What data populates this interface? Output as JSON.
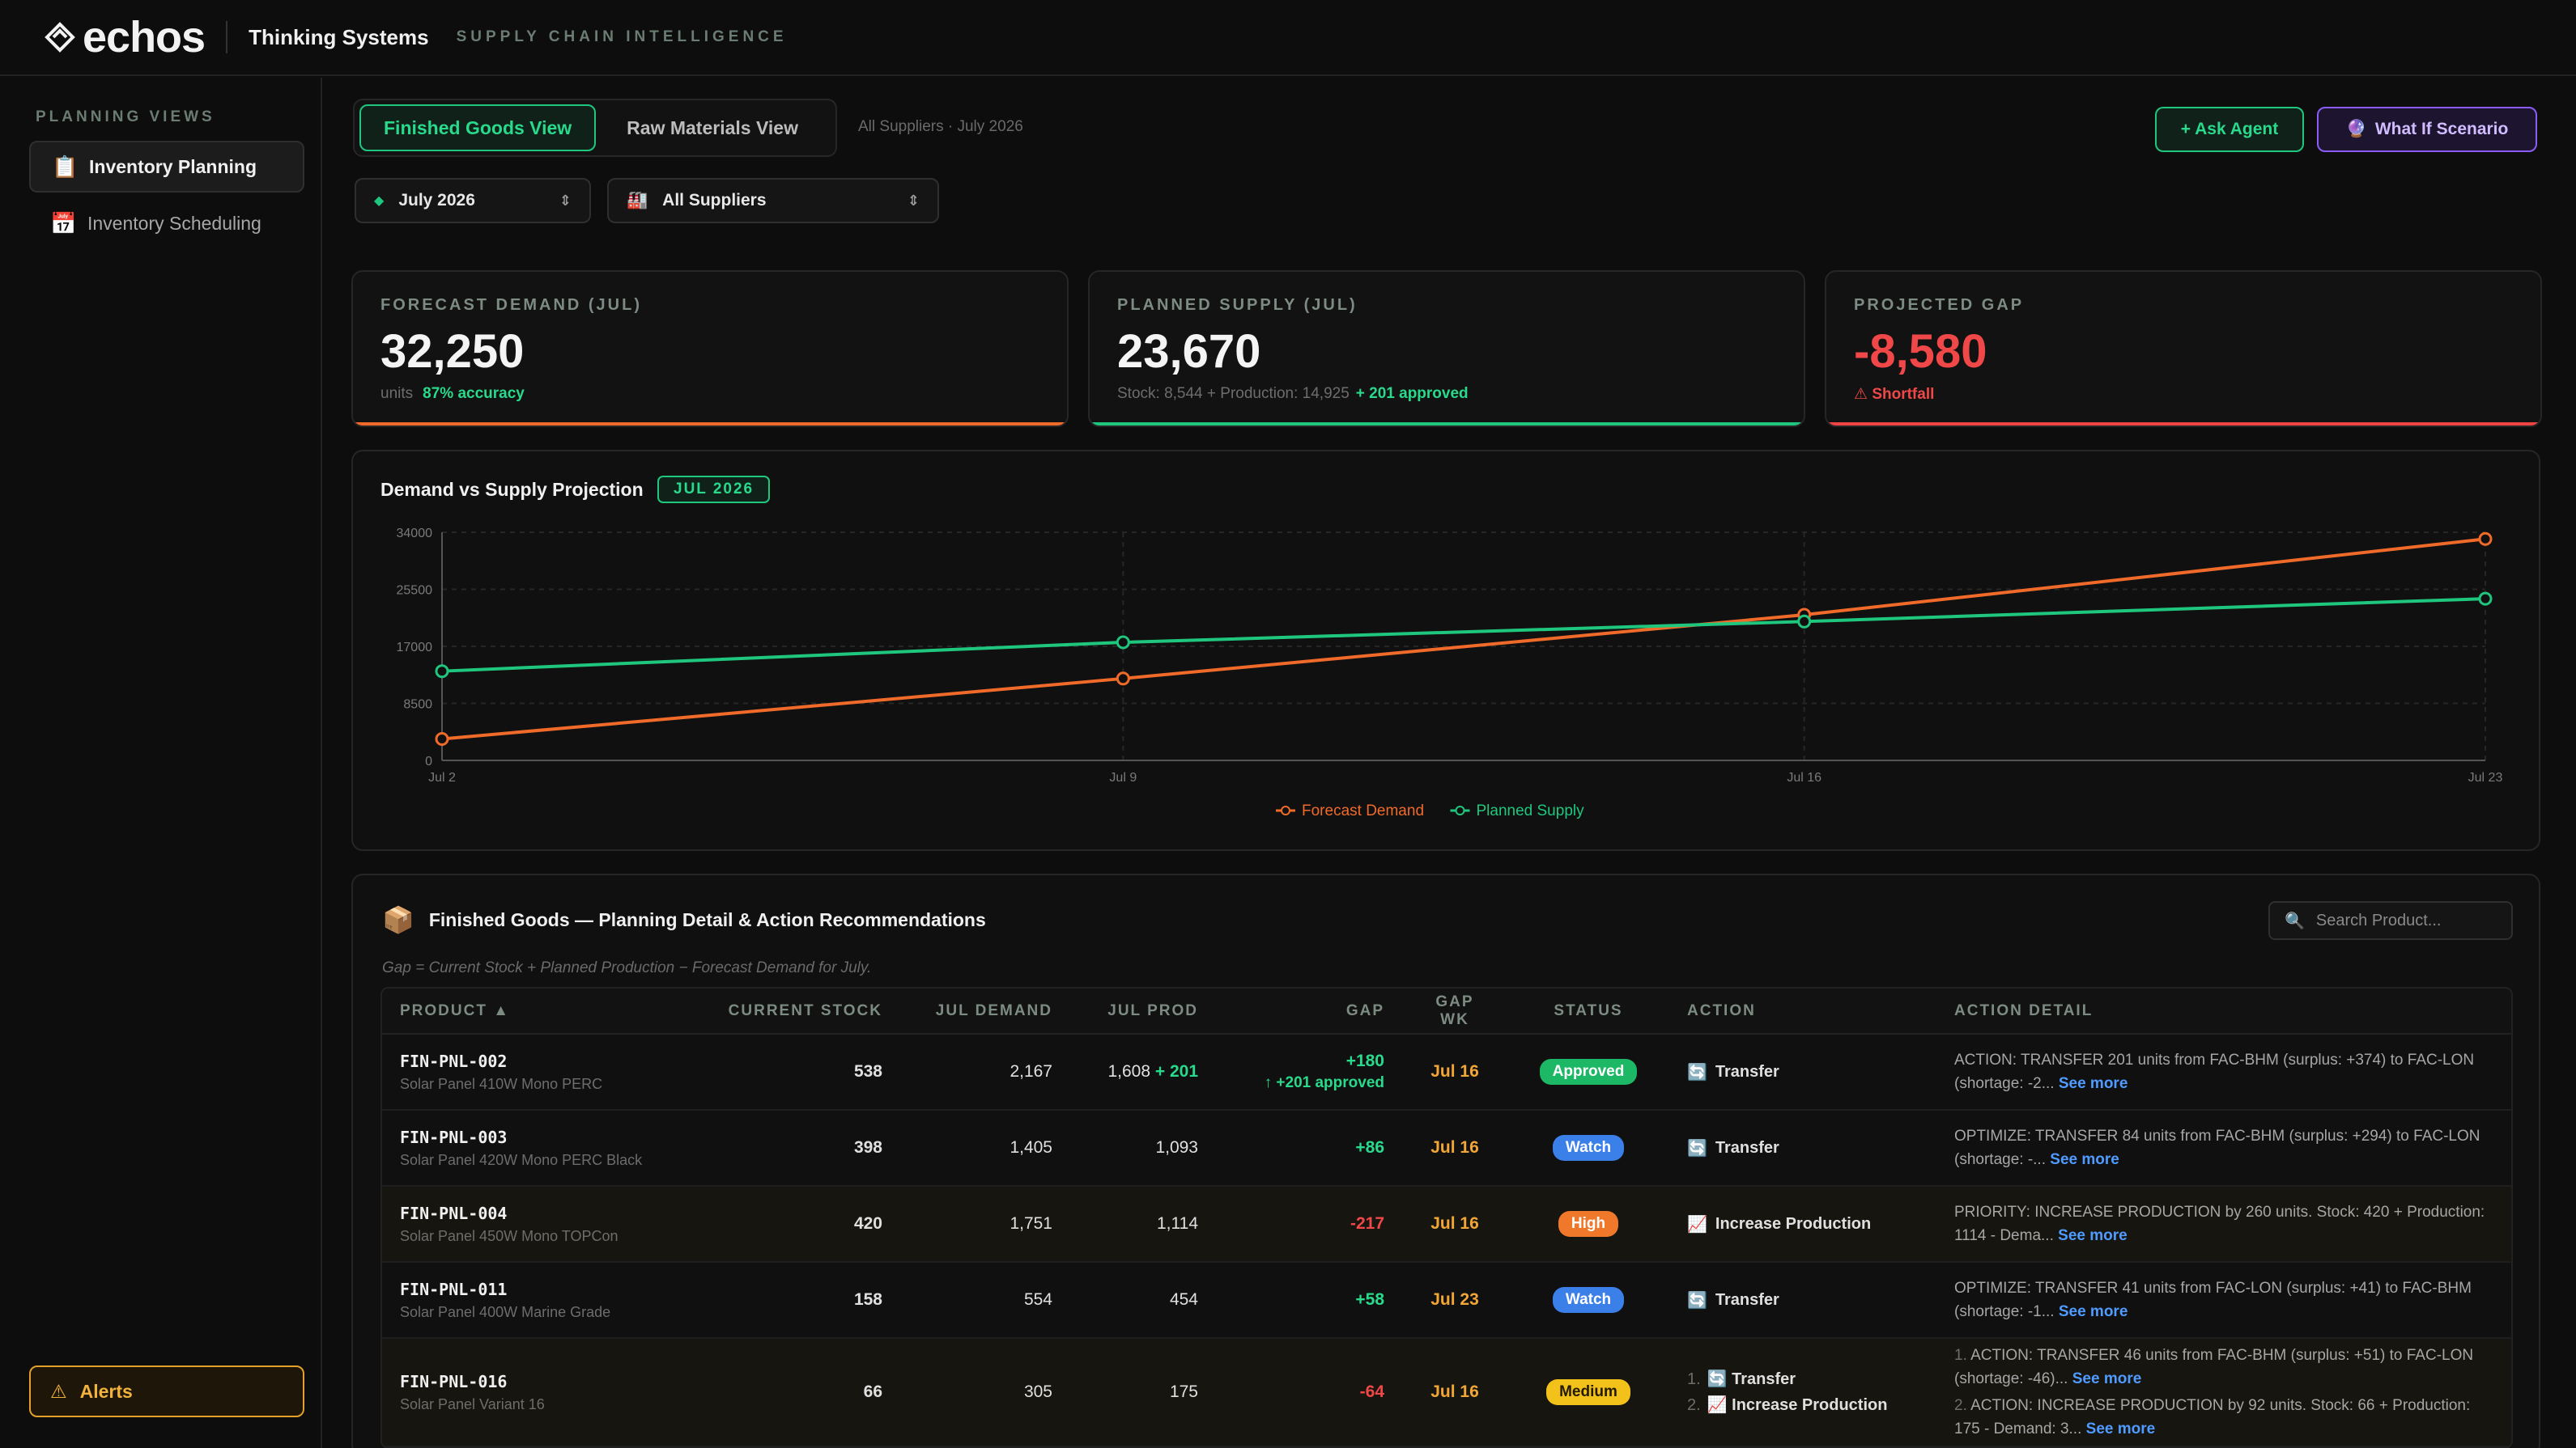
{
  "app": {
    "logo_text": "echos",
    "org_name": "Thinking Systems",
    "subtitle": "SUPPLY CHAIN INTELLIGENCE"
  },
  "sidebar": {
    "heading": "PLANNING VIEWS",
    "items": [
      {
        "label": "Inventory Planning",
        "icon": "clipboard-icon",
        "glyph": "📋"
      },
      {
        "label": "Inventory Scheduling",
        "icon": "calendar-icon",
        "glyph": "📅"
      }
    ],
    "alerts_label": "Alerts"
  },
  "toolbar": {
    "tabs": [
      "Finished Goods View",
      "Raw Materials View"
    ],
    "filter_note": "All Suppliers · July 2026",
    "ask_agent": "+ Ask Agent",
    "what_if": "What If Scenario"
  },
  "filters": {
    "month": "July 2026",
    "supplier": "All Suppliers"
  },
  "kpis": [
    {
      "label": "FORECAST DEMAND (JUL)",
      "value": "32,250",
      "sub": "units",
      "highlight": "87% accuracy"
    },
    {
      "label": "PLANNED SUPPLY (JUL)",
      "value": "23,670",
      "sub": "Stock: 8,544 + Production: 14,925",
      "highlight": "+ 201 approved"
    },
    {
      "label": "PROJECTED GAP",
      "value": "-8,580",
      "warn": "Shortfall"
    }
  ],
  "chart": {
    "title": "Demand vs Supply Projection",
    "badge": "JUL 2026"
  },
  "chart_data": {
    "type": "line",
    "x": [
      "Jul 2",
      "Jul 9",
      "Jul 16",
      "Jul 23"
    ],
    "y_ticks": [
      "0",
      "8500",
      "17000",
      "25500",
      "34000"
    ],
    "ylim": [
      0,
      34000
    ],
    "grid": true,
    "legend_position": "bottom-center",
    "series": [
      {
        "name": "Forecast Demand",
        "color": "#f06a2a",
        "values": [
          3200,
          12200,
          21700,
          33000
        ]
      },
      {
        "name": "Planned Supply",
        "color": "#1fc77e",
        "values": [
          13300,
          17600,
          20700,
          24100
        ]
      }
    ]
  },
  "table": {
    "title": "Finished Goods — Planning Detail & Action Recommendations",
    "search_placeholder": "Search Product...",
    "note": "Gap = Current Stock + Planned Production − Forecast Demand for July.",
    "columns": [
      "PRODUCT ▲",
      "CURRENT STOCK",
      "JUL DEMAND",
      "JUL PROD",
      "GAP",
      "GAP WK",
      "STATUS",
      "ACTION",
      "ACTION DETAIL"
    ],
    "see_more": "See more",
    "rows": [
      {
        "id": "FIN-PNL-002",
        "name": "Solar Panel 410W Mono PERC",
        "stock": "538",
        "demand": "2,167",
        "prod": "1,608",
        "prod_extra": "+ 201",
        "gap": "+180",
        "gap_note": "↑ +201 approved",
        "gap_wk": "Jul 16",
        "status": "Approved",
        "actions": [
          {
            "glyph": "🔄",
            "label": "Transfer"
          }
        ],
        "details": [
          "ACTION: TRANSFER 201 units from FAC-BHM (surplus: +374) to FAC-LON (shortage: -2..."
        ]
      },
      {
        "id": "FIN-PNL-003",
        "name": "Solar Panel 420W Mono PERC Black",
        "stock": "398",
        "demand": "1,405",
        "prod": "1,093",
        "prod_extra": "",
        "gap": "+86",
        "gap_note": "",
        "gap_wk": "Jul 16",
        "status": "Watch",
        "actions": [
          {
            "glyph": "🔄",
            "label": "Transfer"
          }
        ],
        "details": [
          "OPTIMIZE: TRANSFER 84 units from FAC-BHM (surplus: +294) to FAC-LON (shortage: -..."
        ]
      },
      {
        "id": "FIN-PNL-004",
        "name": "Solar Panel 450W Mono TOPCon",
        "stock": "420",
        "demand": "1,751",
        "prod": "1,114",
        "prod_extra": "",
        "gap": "-217",
        "gap_note": "",
        "gap_wk": "Jul 16",
        "status": "High",
        "actions": [
          {
            "glyph": "📈",
            "label": "Increase Production"
          }
        ],
        "details": [
          "PRIORITY: INCREASE PRODUCTION by 260 units. Stock: 420 + Production: 1114 - Dema..."
        ]
      },
      {
        "id": "FIN-PNL-011",
        "name": "Solar Panel 400W Marine Grade",
        "stock": "158",
        "demand": "554",
        "prod": "454",
        "prod_extra": "",
        "gap": "+58",
        "gap_note": "",
        "gap_wk": "Jul 23",
        "status": "Watch",
        "actions": [
          {
            "glyph": "🔄",
            "label": "Transfer"
          }
        ],
        "details": [
          "OPTIMIZE: TRANSFER 41 units from FAC-LON (surplus: +41) to FAC-BHM (shortage: -1..."
        ]
      },
      {
        "id": "FIN-PNL-016",
        "name": "Solar Panel Variant 16",
        "stock": "66",
        "demand": "305",
        "prod": "175",
        "prod_extra": "",
        "gap": "-64",
        "gap_note": "",
        "gap_wk": "Jul 16",
        "status": "Medium",
        "actions": [
          {
            "glyph": "🔄",
            "label": "Transfer"
          },
          {
            "glyph": "📈",
            "label": "Increase Production"
          }
        ],
        "details": [
          "ACTION: TRANSFER 46 units from FAC-BHM (surplus: +51) to FAC-LON (shortage: -46)...",
          "ACTION: INCREASE PRODUCTION by 92 units. Stock: 66 + Production: 175 - Demand: 3..."
        ]
      }
    ]
  },
  "colors": {
    "accent_green": "#1fc77e",
    "accent_orange": "#f06a2a",
    "danger": "#ef4444",
    "purple": "#8b5cf6"
  }
}
